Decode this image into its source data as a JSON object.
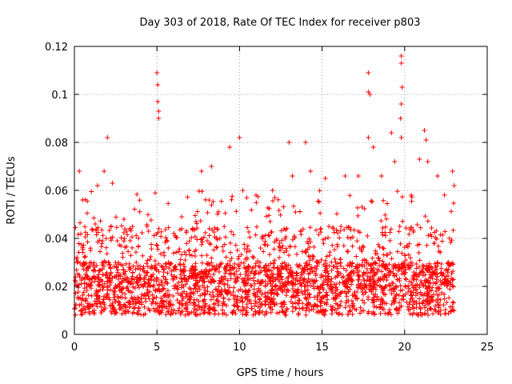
{
  "chart_data": {
    "type": "scatter",
    "title": "Day 303 of 2018, Rate Of TEC Index for receiver p803",
    "xlabel": "GPS time / hours",
    "ylabel": "ROTI / TECUs",
    "xlim": [
      0,
      25
    ],
    "ylim": [
      0,
      0.12
    ],
    "x_ticks": [
      0,
      5,
      10,
      15,
      20,
      25
    ],
    "x_tick_labels": [
      "0",
      "5",
      "10",
      "15",
      "20",
      "25"
    ],
    "y_ticks": [
      0,
      0.02,
      0.04,
      0.06,
      0.08,
      0.1,
      0.12
    ],
    "y_tick_labels": [
      "0",
      "0.02",
      "0.04",
      "0.06",
      "0.08",
      "0.1",
      "0.12"
    ],
    "grid": true,
    "marker": "+",
    "color": "#ff0000",
    "series": [
      {
        "name": "ROTI",
        "note": "dense point cloud spanning 0-23 h, mostly 0.005-0.04 TECU/s with scattered spikes",
        "data_range": [
          0,
          23
        ],
        "typical_band": [
          0.008,
          0.03
        ],
        "spikes": [
          [
            0.3,
            0.068
          ],
          [
            0.5,
            0.056
          ],
          [
            1.4,
            0.062
          ],
          [
            1.8,
            0.068
          ],
          [
            2.0,
            0.082
          ],
          [
            2.3,
            0.063
          ],
          [
            3.0,
            0.048
          ],
          [
            4.4,
            0.045
          ],
          [
            5.0,
            0.109
          ],
          [
            5.05,
            0.104
          ],
          [
            5.05,
            0.097
          ],
          [
            5.1,
            0.093
          ],
          [
            5.1,
            0.09
          ],
          [
            6.5,
            0.049
          ],
          [
            7.7,
            0.068
          ],
          [
            8.3,
            0.07
          ],
          [
            9.4,
            0.078
          ],
          [
            10.0,
            0.082
          ],
          [
            10.2,
            0.06
          ],
          [
            11.0,
            0.058
          ],
          [
            12.0,
            0.06
          ],
          [
            13.0,
            0.08
          ],
          [
            13.2,
            0.066
          ],
          [
            14.0,
            0.08
          ],
          [
            14.3,
            0.068
          ],
          [
            15.2,
            0.065
          ],
          [
            16.4,
            0.066
          ],
          [
            17.2,
            0.066
          ],
          [
            17.8,
            0.109
          ],
          [
            17.8,
            0.101
          ],
          [
            17.9,
            0.1
          ],
          [
            17.8,
            0.082
          ],
          [
            18.1,
            0.078
          ],
          [
            18.6,
            0.066
          ],
          [
            19.2,
            0.084
          ],
          [
            19.4,
            0.072
          ],
          [
            19.8,
            0.116
          ],
          [
            19.8,
            0.113
          ],
          [
            19.85,
            0.103
          ],
          [
            19.8,
            0.096
          ],
          [
            19.75,
            0.09
          ],
          [
            19.8,
            0.082
          ],
          [
            20.4,
            0.058
          ],
          [
            20.9,
            0.073
          ],
          [
            21.2,
            0.085
          ],
          [
            21.3,
            0.081
          ],
          [
            21.4,
            0.072
          ],
          [
            22.0,
            0.066
          ],
          [
            22.9,
            0.068
          ],
          [
            23.0,
            0.062
          ]
        ]
      }
    ]
  }
}
